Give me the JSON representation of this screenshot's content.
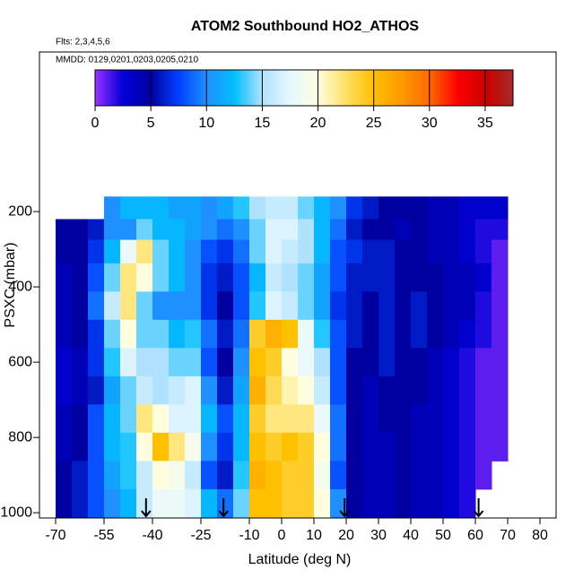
{
  "chart_data": {
    "type": "heatmap",
    "title": "ATOM2 Southbound HO2_ATHOS",
    "subtitle": "Flts: 2,3,4,5,6",
    "annotation": "MMDD: 0129,0201,0203,0205,0210",
    "xlabel": "Latitude (deg N)",
    "ylabel": "PSXC (mbar)",
    "xlim": [
      -75,
      85
    ],
    "ylim": [
      -224,
      1014
    ],
    "xticks": [
      -70,
      -55,
      -40,
      -25,
      -10,
      0,
      10,
      20,
      30,
      40,
      50,
      60,
      70,
      80
    ],
    "yticks": [
      200,
      400,
      600,
      800,
      1000
    ],
    "x": [
      -67.5,
      -62.5,
      -57.5,
      -52.5,
      -47.5,
      -42.5,
      -37.5,
      -32.5,
      -27.5,
      -22.5,
      -17.5,
      -12.5,
      -7.5,
      -2.5,
      2.5,
      7.5,
      12.5,
      17.5,
      22.5,
      27.5,
      32.5,
      37.5,
      42.5,
      47.5,
      52.5,
      57.5,
      62.5,
      67.5
    ],
    "y": [
      190,
      250,
      300,
      375,
      450,
      525,
      600,
      675,
      750,
      825,
      900,
      975
    ],
    "values": [
      [
        null,
        null,
        null,
        10,
        12,
        12,
        12,
        11,
        11,
        10,
        11,
        13,
        15,
        16,
        16,
        14,
        12,
        10,
        7,
        6,
        5,
        5,
        5,
        4,
        4,
        3,
        3,
        3
      ],
      [
        5,
        5,
        6,
        10,
        10,
        14,
        12,
        12,
        11,
        10,
        9,
        10,
        14,
        17,
        17,
        15,
        12,
        9,
        6,
        5,
        5,
        4,
        5,
        4,
        4,
        3,
        2,
        2
      ],
      [
        5,
        5,
        7,
        12,
        18,
        22,
        14,
        12,
        10,
        8,
        7,
        9,
        14,
        17,
        16,
        15,
        12,
        8,
        7,
        6,
        6,
        5,
        5,
        4,
        4,
        3,
        2,
        1
      ],
      [
        4,
        5,
        8,
        14,
        22,
        20,
        14,
        12,
        10,
        7,
        6,
        8,
        12,
        16,
        15,
        14,
        11,
        8,
        6,
        6,
        6,
        5,
        5,
        5,
        4,
        4,
        3,
        1
      ],
      [
        4,
        5,
        9,
        16,
        22,
        14,
        10,
        10,
        10,
        7,
        5,
        8,
        13,
        17,
        16,
        14,
        11,
        7,
        6,
        5,
        6,
        5,
        6,
        5,
        4,
        4,
        2,
        1
      ],
      [
        4,
        5,
        7,
        14,
        20,
        14,
        14,
        12,
        13,
        9,
        6,
        9,
        24,
        26,
        25,
        18,
        13,
        8,
        6,
        5,
        6,
        5,
        6,
        5,
        4,
        3,
        2,
        1
      ],
      [
        3,
        4,
        7,
        13,
        17,
        15,
        15,
        14,
        14,
        8,
        5,
        10,
        25,
        24,
        20,
        18,
        15,
        8,
        5,
        5,
        6,
        5,
        5,
        4,
        3,
        2,
        1,
        1
      ],
      [
        3,
        4,
        6,
        11,
        14,
        16,
        15,
        16,
        17,
        10,
        6,
        11,
        26,
        23,
        21,
        20,
        16,
        8,
        5,
        4,
        5,
        5,
        5,
        4,
        3,
        2,
        1,
        1
      ],
      [
        4,
        5,
        8,
        12,
        14,
        22,
        20,
        17,
        17,
        12,
        8,
        12,
        24,
        22,
        22,
        22,
        18,
        9,
        5,
        4,
        5,
        5,
        4,
        4,
        3,
        2,
        1,
        1
      ],
      [
        4,
        5,
        8,
        12,
        13,
        20,
        25,
        22,
        19,
        10,
        7,
        12,
        25,
        24,
        25,
        24,
        20,
        9,
        5,
        4,
        4,
        5,
        4,
        4,
        3,
        2,
        1,
        1
      ],
      [
        5,
        6,
        8,
        11,
        13,
        16,
        20,
        19,
        16,
        8,
        6,
        13,
        26,
        25,
        24,
        24,
        19,
        8,
        5,
        4,
        4,
        5,
        4,
        4,
        3,
        2,
        1,
        null
      ],
      [
        5,
        6,
        8,
        10,
        12,
        16,
        18,
        18,
        17,
        12,
        9,
        14,
        25,
        25,
        24,
        24,
        20,
        10,
        5,
        4,
        4,
        5,
        4,
        4,
        3,
        2,
        null,
        null
      ]
    ],
    "colorbar": {
      "range": [
        0,
        37.5
      ],
      "ticks": [
        0,
        5,
        10,
        15,
        20,
        25,
        30,
        35
      ],
      "colors": [
        "#9b30ff",
        "#0000d8",
        "#0000a0",
        "#0040ff",
        "#1e90ff",
        "#00bfff",
        "#b0e2ff",
        "#e6f8ff",
        "#ffffe0",
        "#ffe066",
        "#ffc000",
        "#ff9900",
        "#ff6a00",
        "#ff0000",
        "#cc0000",
        "#a52a2a"
      ]
    },
    "arrows_x": [
      -42,
      -18,
      19.5,
      61
    ]
  }
}
